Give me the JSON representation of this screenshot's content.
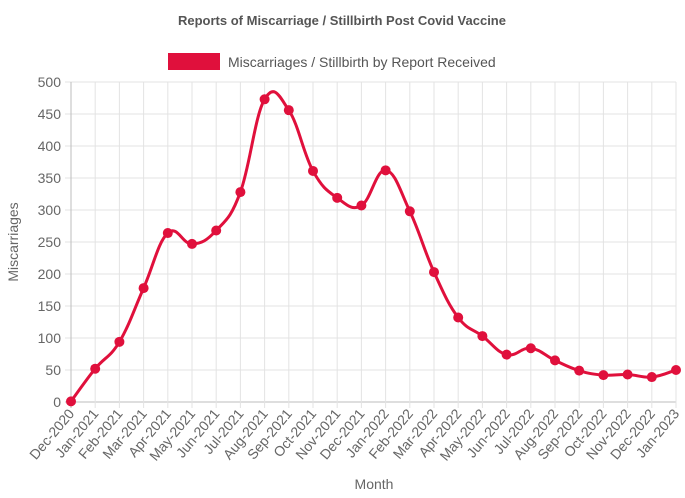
{
  "chart_data": {
    "type": "line",
    "title": "Reports of Miscarriage / Stillbirth Post Covid Vaccine",
    "xlabel": "Month",
    "ylabel": "Miscarriages",
    "ylim": [
      0,
      500
    ],
    "yticks": [
      0,
      50,
      100,
      150,
      200,
      250,
      300,
      350,
      400,
      450,
      500
    ],
    "grid": true,
    "legend_position": "top",
    "categories": [
      "Dec-2020",
      "Jan-2021",
      "Feb-2021",
      "Mar-2021",
      "Apr-2021",
      "May-2021",
      "Jun-2021",
      "Jul-2021",
      "Aug-2021",
      "Sep-2021",
      "Oct-2021",
      "Nov-2021",
      "Dec-2021",
      "Jan-2022",
      "Feb-2022",
      "Mar-2022",
      "Apr-2022",
      "May-2022",
      "Jun-2022",
      "Jul-2022",
      "Aug-2022",
      "Sep-2022",
      "Oct-2022",
      "Nov-2022",
      "Dec-2022",
      "Jan-2023"
    ],
    "series": [
      {
        "name": "Miscarriages / Stillbirth by Report Received",
        "color": "#e0103c",
        "values": [
          1,
          52,
          94,
          178,
          264,
          247,
          268,
          328,
          473,
          456,
          361,
          319,
          307,
          362,
          298,
          203,
          132,
          103,
          74,
          84,
          65,
          49,
          42,
          43,
          39,
          50
        ]
      }
    ]
  }
}
